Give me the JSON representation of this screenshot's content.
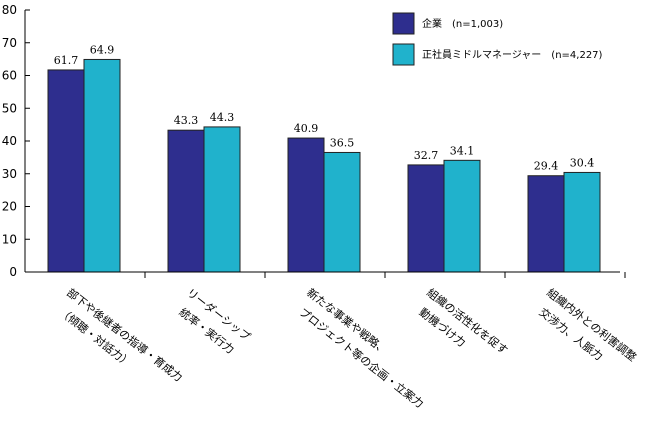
{
  "chart_data": {
    "type": "bar",
    "title": "",
    "xlabel": "",
    "ylabel": "",
    "ylim": [
      0,
      80
    ],
    "yticks": [
      0,
      10,
      20,
      30,
      40,
      50,
      60,
      70,
      80
    ],
    "grid": false,
    "legend_position": "top-right",
    "categories": [
      [
        "部下や後継者の指導・育成力",
        "（傾聴・対話力）"
      ],
      [
        "リーダーシップ",
        "統率・実行力"
      ],
      [
        "新たな事業や戦略、",
        "プロジェクト等の企画・立案力"
      ],
      [
        "組織の活性化を促す",
        "動機づけ力"
      ],
      [
        "組織内外との利害調整",
        "交渉力、人脈力"
      ]
    ],
    "series": [
      {
        "name": "企業",
        "legend_label": "企業　(n=1,003)",
        "color": "#2e2e8e",
        "values": [
          61.7,
          43.3,
          40.9,
          32.7,
          29.4
        ],
        "value_labels": [
          "61.7",
          "43.3",
          "40.9",
          "32.7",
          "29.4"
        ]
      },
      {
        "name": "正社員ミドルマネージャー",
        "legend_label": "正社員ミドルマネージャー　(n=4,227)",
        "color": "#20b2cc",
        "values": [
          64.9,
          44.3,
          36.5,
          34.1,
          30.4
        ],
        "value_labels": [
          "64.9",
          "44.3",
          "36.5",
          "34.1",
          "30.4"
        ]
      }
    ]
  }
}
